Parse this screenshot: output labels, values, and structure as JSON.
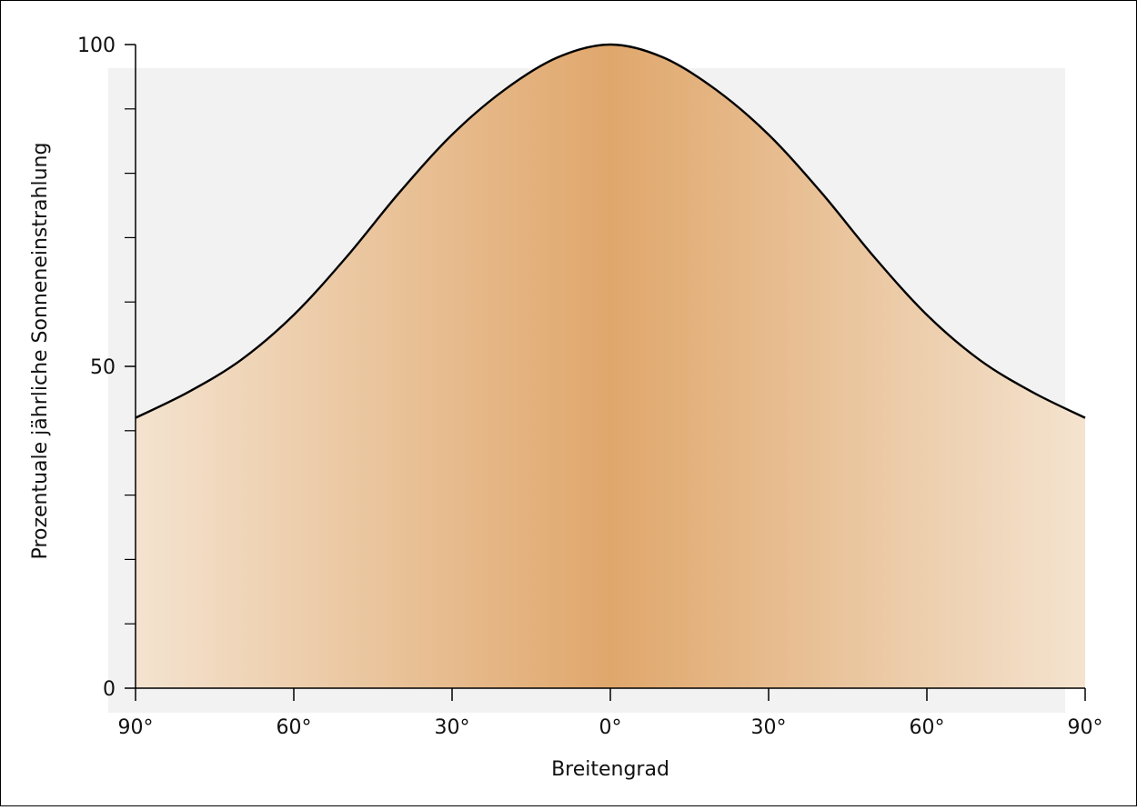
{
  "chart_data": {
    "type": "area",
    "xlabel": "Breitengrad",
    "ylabel": "Prozentuale jährliche Sonneneinstrahlung",
    "x_tick_labels": [
      "90°",
      "60°",
      "30°",
      "0°",
      "30°",
      "60°",
      "90°"
    ],
    "x_tick_values": [
      -90,
      -60,
      -30,
      0,
      30,
      60,
      90
    ],
    "y_tick_labels": [
      "0",
      "50",
      "100"
    ],
    "y_tick_values": [
      0,
      50,
      100
    ],
    "y_minor_ticks": [
      10,
      20,
      30,
      40,
      60,
      70,
      80,
      90
    ],
    "xlim": [
      -90,
      90
    ],
    "ylim": [
      0,
      100
    ],
    "grid": false,
    "series": [
      {
        "x": [
          -90,
          -80,
          -70,
          -60,
          -50,
          -40,
          -30,
          -20,
          -10,
          0,
          10,
          20,
          30,
          40,
          50,
          60,
          70,
          80,
          90
        ],
        "values": [
          42,
          46,
          51,
          58,
          67,
          77,
          86,
          93,
          98,
          100,
          98,
          93,
          86,
          77,
          67,
          58,
          51,
          46,
          42
        ]
      }
    ],
    "colors": {
      "fill_center": "#e0a76c",
      "fill_edge": "#f4e3cf",
      "line": "#000000",
      "background_band": "#f2f2f2"
    }
  }
}
